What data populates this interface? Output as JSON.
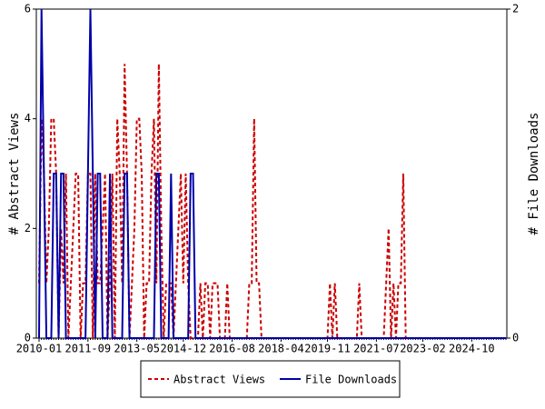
{
  "chart_data": {
    "type": "line",
    "y_label": "# Abstract Views",
    "y2_label": "# File Downloads",
    "categories": [
      "2010-01",
      null,
      null,
      null,
      null,
      null,
      null,
      null,
      null,
      null,
      null,
      null,
      null,
      null,
      null,
      null,
      null,
      null,
      null,
      null,
      "2011-09",
      null,
      null,
      null,
      null,
      null,
      null,
      null,
      null,
      null,
      null,
      null,
      null,
      null,
      null,
      null,
      null,
      null,
      null,
      null,
      "2013-05",
      null,
      null,
      null,
      null,
      null,
      null,
      null,
      null,
      null,
      null,
      null,
      null,
      null,
      null,
      null,
      null,
      null,
      null,
      "2014-12",
      null,
      null,
      null,
      null,
      null,
      null,
      null,
      null,
      null,
      null,
      null,
      null,
      null,
      null,
      null,
      null,
      null,
      null,
      null,
      "2016-08",
      null,
      null,
      null,
      null,
      null,
      null,
      null,
      null,
      null,
      null,
      null,
      null,
      null,
      null,
      null,
      null,
      null,
      null,
      null,
      "2018-04",
      null,
      null,
      null,
      null,
      null,
      null,
      null,
      null,
      null,
      null,
      null,
      null,
      null,
      null,
      null,
      null,
      null,
      null,
      "2019-11",
      null,
      null,
      null,
      null,
      null,
      null,
      null,
      null,
      null,
      null,
      null,
      null,
      null,
      null,
      null,
      null,
      null,
      null,
      null,
      "2021-07",
      null,
      null,
      null,
      null,
      null,
      null,
      null,
      null,
      null,
      null,
      null,
      null,
      null,
      null,
      null,
      null,
      null,
      null,
      "2023-02",
      null,
      null,
      null,
      null,
      null,
      null,
      null,
      null,
      null,
      null,
      null,
      null,
      null,
      null,
      null,
      null,
      null,
      null,
      null,
      "2024-10",
      null,
      null,
      null,
      null,
      null,
      null,
      null,
      null,
      null,
      null,
      null,
      null,
      null,
      null
    ],
    "series": [
      {
        "name": "Abstract Views",
        "color": "#cc0000",
        "dash": true,
        "values": [
          1,
          4,
          3,
          1,
          2,
          4,
          4,
          3,
          0,
          2,
          1,
          3,
          0,
          1,
          2,
          3,
          3,
          0,
          1,
          1,
          3,
          3,
          0,
          3,
          1,
          1,
          2,
          3,
          0,
          1,
          3,
          0,
          4,
          3,
          1,
          5,
          3,
          0,
          1,
          2,
          4,
          4,
          3,
          0,
          1,
          1,
          3,
          4,
          1,
          5,
          2,
          0,
          1,
          1,
          1,
          0,
          1,
          2,
          3,
          1,
          3,
          1,
          0,
          0,
          0,
          0,
          1,
          0,
          1,
          1,
          0,
          1,
          1,
          1,
          0,
          0,
          0,
          1,
          0,
          0,
          0,
          0,
          0,
          0,
          0,
          0,
          1,
          1,
          4,
          1,
          1,
          0,
          0,
          0,
          0,
          0,
          0,
          0,
          0,
          0,
          0,
          0,
          0,
          0,
          0,
          0,
          0,
          0,
          0,
          0,
          0,
          0,
          0,
          0,
          0,
          0,
          0,
          0,
          0,
          1,
          0,
          1,
          0,
          0,
          0,
          0,
          0,
          0,
          0,
          0,
          0,
          1,
          0,
          0,
          0,
          0,
          0,
          0,
          0,
          0,
          0,
          0,
          1,
          2,
          0,
          1,
          0,
          1,
          1,
          3,
          0,
          0,
          0,
          0,
          0,
          0,
          0,
          0,
          0,
          0,
          0,
          0,
          0,
          0,
          0,
          0,
          0,
          0,
          0,
          0,
          0,
          0,
          0,
          0,
          0,
          0,
          0,
          0,
          0,
          0,
          0,
          0,
          0,
          0,
          0,
          0,
          0,
          0,
          0,
          0,
          0,
          0
        ]
      },
      {
        "name": "File Downloads",
        "color": "#0000aa",
        "axis": "y2",
        "values": [
          0,
          2,
          1,
          0,
          0,
          0,
          1,
          1,
          0,
          1,
          1,
          0,
          0,
          0,
          0,
          0,
          0,
          0,
          0,
          0,
          1,
          2,
          1,
          0,
          1,
          1,
          0,
          0,
          0,
          1,
          0,
          0,
          0,
          0,
          0,
          1,
          1,
          0,
          0,
          0,
          0,
          0,
          0,
          0,
          0,
          0,
          0,
          0,
          1,
          1,
          0,
          0,
          0,
          0,
          1,
          0,
          0,
          0,
          0,
          0,
          0,
          0,
          1,
          1,
          0,
          0,
          0,
          0,
          0,
          0,
          0,
          0,
          0,
          0,
          0,
          0,
          0,
          0,
          0,
          0,
          0,
          0,
          0,
          0,
          0,
          0,
          0,
          0,
          0,
          0,
          0,
          0,
          0,
          0,
          0,
          0,
          0,
          0,
          0,
          0,
          0,
          0,
          0,
          0,
          0,
          0,
          0,
          0,
          0,
          0,
          0,
          0,
          0,
          0,
          0,
          0,
          0,
          0,
          0,
          0,
          0,
          0,
          0,
          0,
          0,
          0,
          0,
          0,
          0,
          0,
          0,
          0,
          0,
          0,
          0,
          0,
          0,
          0,
          0,
          0,
          0,
          0,
          0,
          0,
          0,
          0,
          0,
          0,
          0,
          0,
          0,
          0,
          0,
          0,
          0,
          0,
          0,
          0,
          0,
          0,
          0,
          0,
          0,
          0,
          0,
          0,
          0,
          0,
          0,
          0,
          0,
          0,
          0,
          0,
          0,
          0,
          0,
          0,
          0,
          0,
          0,
          0,
          0,
          0,
          0,
          0,
          0,
          0,
          0,
          0,
          0,
          0
        ]
      }
    ],
    "ylim": [
      0,
      6
    ],
    "yticks": [
      0,
      2,
      4,
      6
    ],
    "y2lim": [
      0,
      2
    ],
    "y2ticks": [
      0,
      2
    ]
  }
}
